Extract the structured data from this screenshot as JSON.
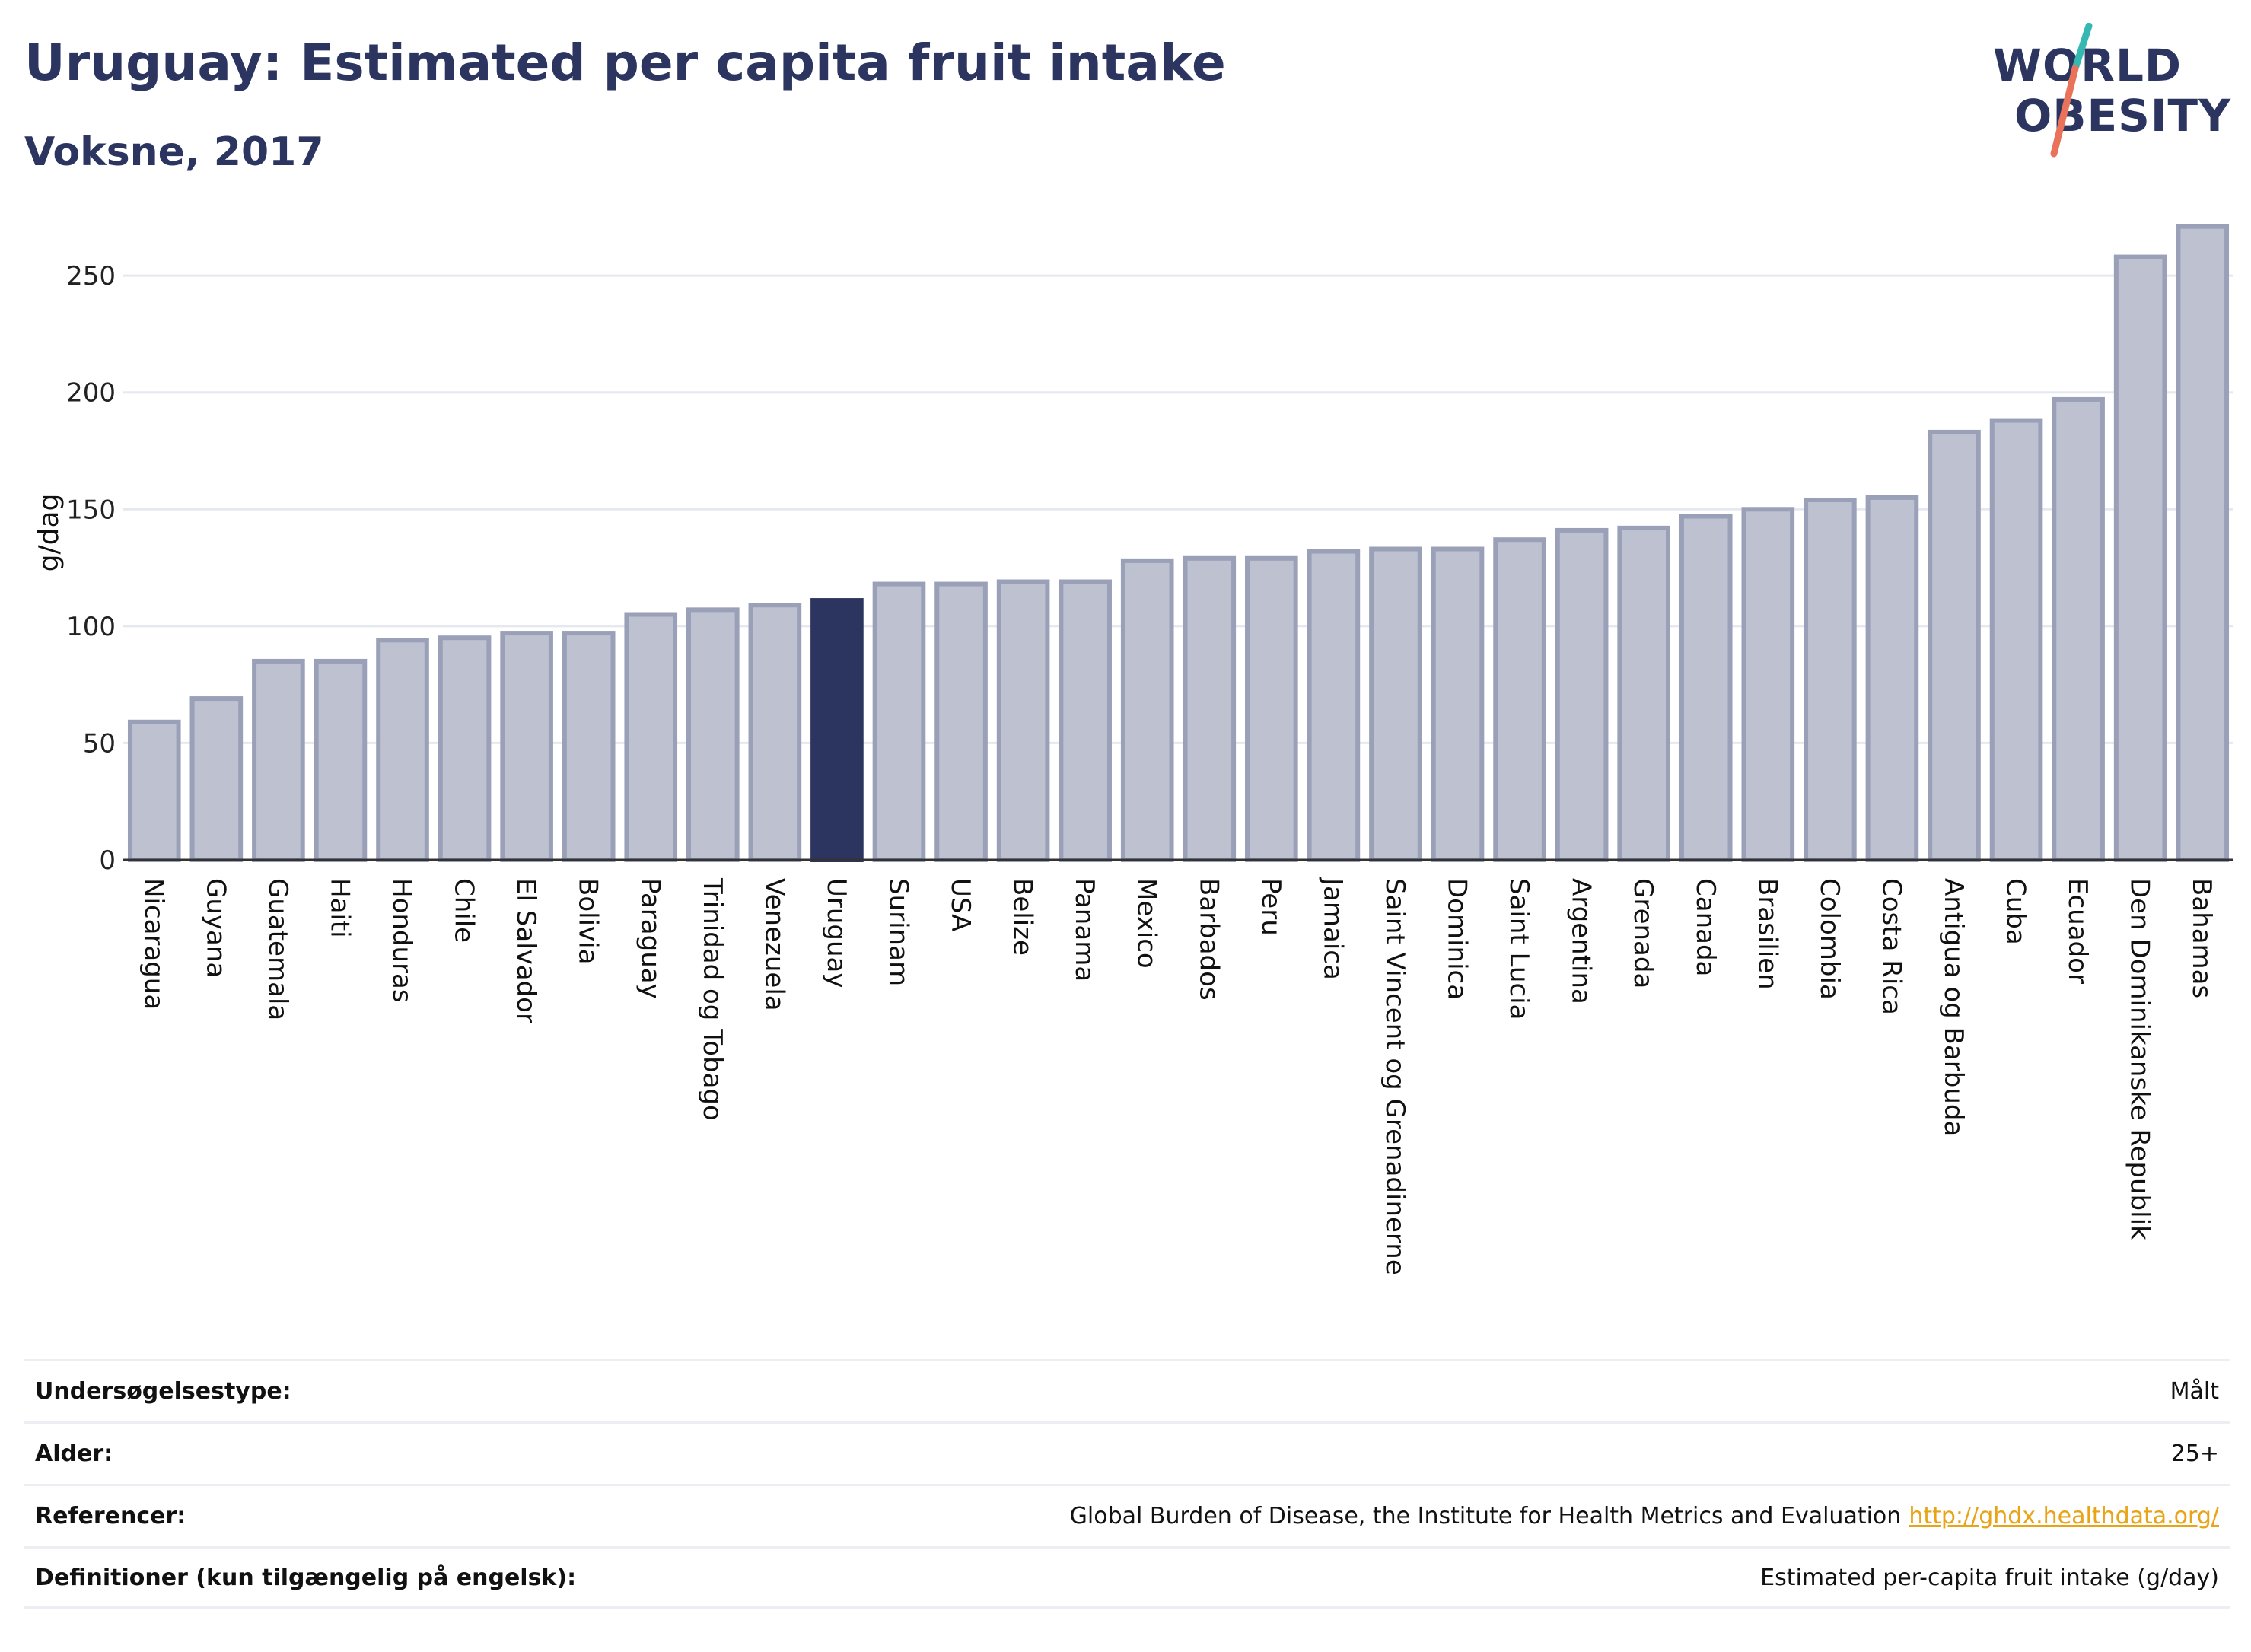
{
  "header": {
    "title": "Uruguay: Estimated per capita fruit intake",
    "subtitle": "Voksne, 2017"
  },
  "logo": {
    "line1": "WORLD",
    "line2": "OBESITY",
    "slash_colors": [
      "#35b7b2",
      "#e8735a"
    ]
  },
  "colors": {
    "bar": "#bdc1d0",
    "bar_stroke": "#9aa0b8",
    "highlight": "#2b3560",
    "text": "#2b3560",
    "grid": "#e6e8ef",
    "link": "#e8a317"
  },
  "chart_data": {
    "type": "bar",
    "ylabel": "g/dag",
    "ylim": [
      0,
      280
    ],
    "yticks": [
      0,
      50,
      100,
      150,
      200,
      250
    ],
    "highlight": "Uruguay",
    "categories": [
      "Nicaragua",
      "Guyana",
      "Guatemala",
      "Haiti",
      "Honduras",
      "Chile",
      "El Salvador",
      "Bolivia",
      "Paraguay",
      "Trinidad og Tobago",
      "Venezuela",
      "Uruguay",
      "Surinam",
      "USA",
      "Belize",
      "Panama",
      "Mexico",
      "Barbados",
      "Peru",
      "Jamaica",
      "Saint Vincent og Grenadinerne",
      "Dominica",
      "Saint Lucia",
      "Argentina",
      "Grenada",
      "Canada",
      "Brasilien",
      "Colombia",
      "Costa Rica",
      "Antigua og Barbuda",
      "Cuba",
      "Ecuador",
      "Den Dominikanske Republik",
      "Bahamas"
    ],
    "values": [
      59,
      69,
      85,
      85,
      94,
      95,
      97,
      97,
      105,
      107,
      109,
      111,
      118,
      118,
      119,
      119,
      128,
      129,
      129,
      132,
      133,
      133,
      137,
      141,
      142,
      147,
      150,
      154,
      155,
      183,
      188,
      197,
      258,
      271
    ]
  },
  "info": [
    {
      "label": "Undersøgelsestype:",
      "value": "Målt"
    },
    {
      "label": "Alder:",
      "value": "25+"
    },
    {
      "label": "Referencer:",
      "value": "Global Burden of Disease, the Institute for Health Metrics and Evaluation",
      "link": "http://ghdx.healthdata.org/"
    },
    {
      "label": "Definitioner (kun tilgængelig på engelsk):",
      "value": "Estimated per-capita fruit intake (g/day)"
    }
  ]
}
